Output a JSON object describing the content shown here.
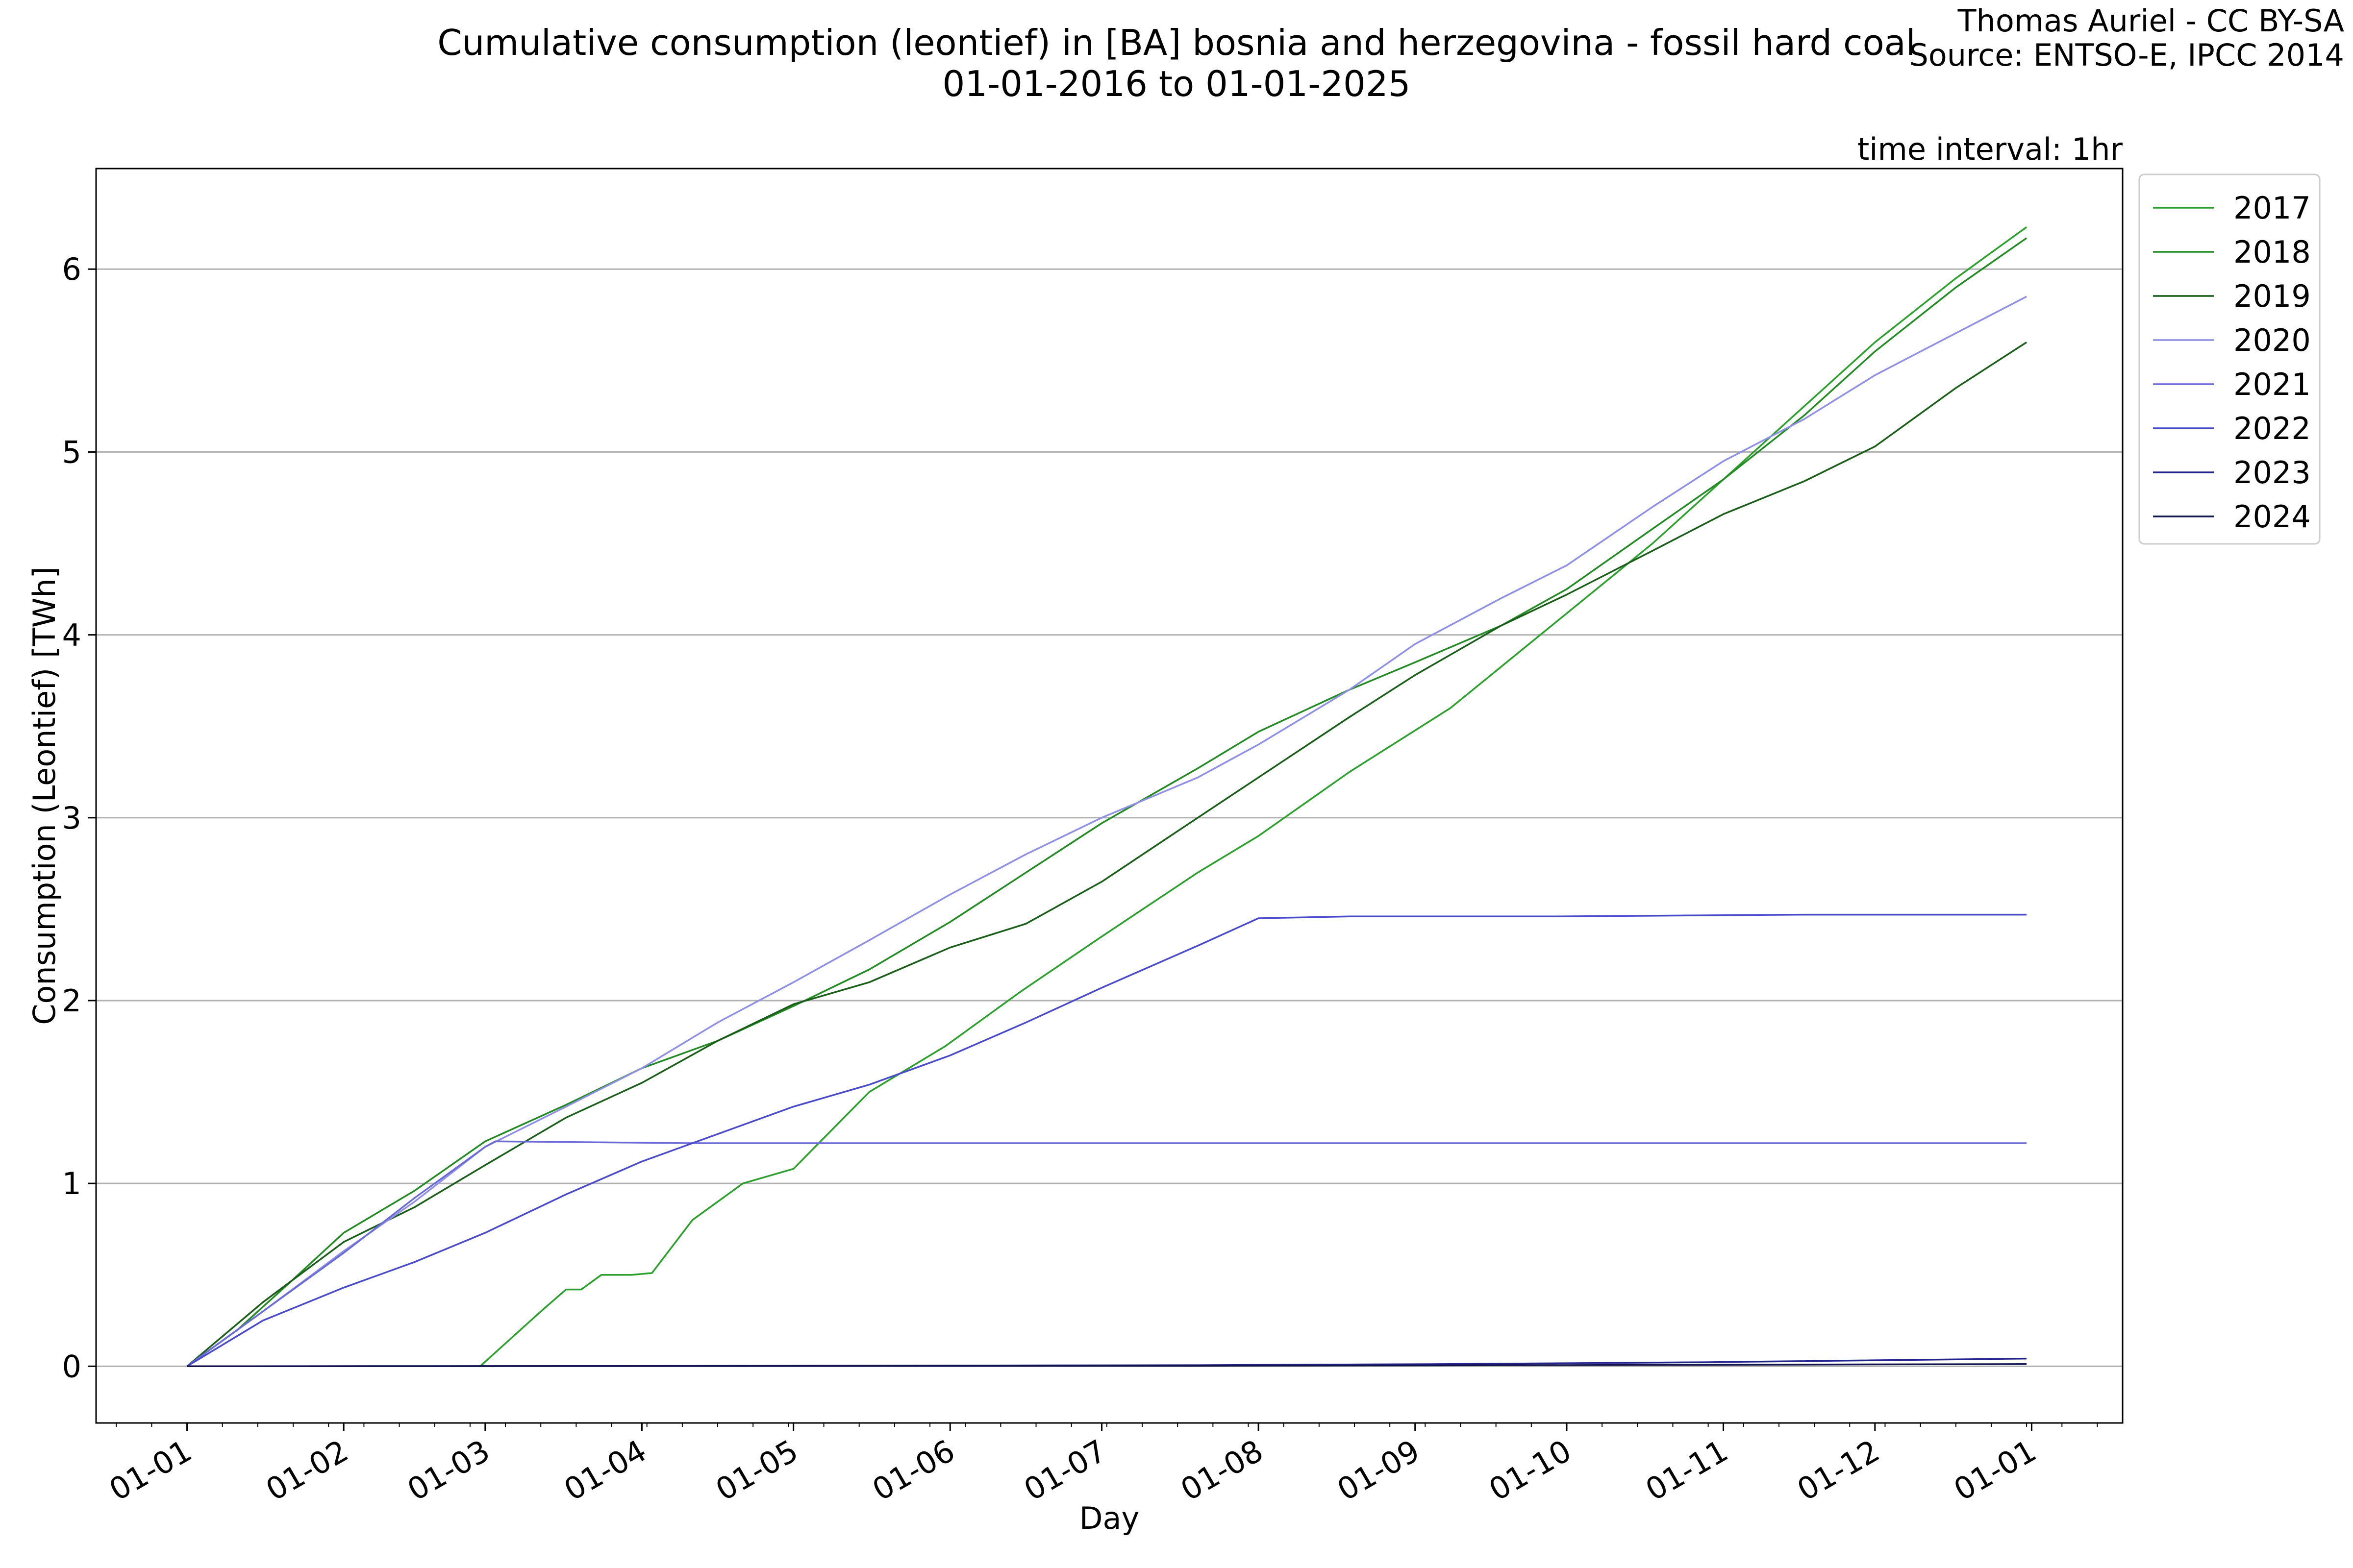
{
  "chart_data": {
    "type": "line",
    "title": "Cumulative consumption (leontief) in [BA] bosnia and herzegovina - fossil hard coal",
    "subtitle": "01-01-2016 to 01-01-2025",
    "credit_line1": "Thomas Auriel - CC BY-SA",
    "credit_line2": "Source: ENTSO-E, IPCC 2014",
    "annotation": "time interval: 1hr",
    "xlabel": "Day",
    "ylabel": "Consumption (Leontief) [TWh]",
    "x_tick_labels": [
      "01-01",
      "01-02",
      "01-03",
      "01-04",
      "01-05",
      "01-06",
      "01-07",
      "01-08",
      "01-09",
      "01-10",
      "01-11",
      "01-12",
      "01-01"
    ],
    "x_tick_days": [
      0,
      31,
      59,
      90,
      120,
      151,
      181,
      212,
      243,
      273,
      304,
      334,
      365
    ],
    "y_ticks": [
      0,
      1,
      2,
      3,
      4,
      5,
      6
    ],
    "y_tick_labels": [
      "0",
      "1",
      "2",
      "3",
      "4",
      "5",
      "6"
    ],
    "xlim": [
      -18,
      383
    ],
    "ylim": [
      -0.31,
      6.55
    ],
    "grid": "horizontal",
    "legend_position": "outside-top-right",
    "series": [
      {
        "name": "2017",
        "color": "#2ca02c",
        "x": [
          0,
          58,
          62,
          70,
          75,
          78,
          82,
          88,
          92,
          100,
          110,
          120,
          125,
          135,
          150,
          165,
          181,
          200,
          212,
          230,
          250,
          270,
          290,
          304,
          320,
          334,
          350,
          364
        ],
        "y": [
          0,
          0,
          0.1,
          0.3,
          0.42,
          0.42,
          0.5,
          0.5,
          0.51,
          0.8,
          1.0,
          1.08,
          1.22,
          1.5,
          1.75,
          2.05,
          2.35,
          2.7,
          2.9,
          3.25,
          3.6,
          4.05,
          4.5,
          4.85,
          5.25,
          5.6,
          5.95,
          6.23
        ]
      },
      {
        "name": "2018",
        "color": "#238b23",
        "x": [
          0,
          10,
          20,
          31,
          45,
          59,
          75,
          90,
          105,
          120,
          135,
          151,
          166,
          181,
          200,
          212,
          230,
          243,
          260,
          273,
          290,
          304,
          320,
          334,
          350,
          364
        ],
        "y": [
          0,
          0.2,
          0.45,
          0.73,
          0.96,
          1.23,
          1.43,
          1.63,
          1.78,
          1.97,
          2.17,
          2.43,
          2.7,
          2.97,
          3.27,
          3.47,
          3.7,
          3.85,
          4.05,
          4.25,
          4.58,
          4.85,
          5.2,
          5.55,
          5.9,
          6.17
        ]
      },
      {
        "name": "2019",
        "color": "#1a5e1a",
        "x": [
          0,
          15,
          31,
          45,
          59,
          75,
          90,
          105,
          120,
          135,
          151,
          166,
          181,
          200,
          212,
          230,
          243,
          260,
          273,
          290,
          304,
          320,
          334,
          350,
          364
        ],
        "y": [
          0,
          0.35,
          0.68,
          0.87,
          1.1,
          1.36,
          1.55,
          1.78,
          1.98,
          2.1,
          2.29,
          2.42,
          2.65,
          3.0,
          3.22,
          3.55,
          3.78,
          4.05,
          4.22,
          4.46,
          4.66,
          4.84,
          5.03,
          5.35,
          5.6
        ]
      },
      {
        "name": "2020",
        "color": "#8f8fe6",
        "x": [
          0,
          15,
          31,
          45,
          59,
          75,
          90,
          105,
          120,
          135,
          151,
          166,
          181,
          200,
          212,
          230,
          243,
          260,
          273,
          290,
          304,
          320,
          334,
          350,
          364
        ],
        "y": [
          0,
          0.3,
          0.63,
          0.9,
          1.2,
          1.42,
          1.63,
          1.88,
          2.1,
          2.33,
          2.58,
          2.8,
          3.0,
          3.22,
          3.4,
          3.7,
          3.95,
          4.2,
          4.38,
          4.7,
          4.95,
          5.18,
          5.42,
          5.65,
          5.85
        ]
      },
      {
        "name": "2021",
        "color": "#6b6bd8",
        "x": [
          0,
          15,
          31,
          45,
          59,
          61,
          100,
          150,
          200,
          250,
          300,
          364
        ],
        "y": [
          0,
          0.3,
          0.62,
          0.92,
          1.2,
          1.23,
          1.22,
          1.22,
          1.22,
          1.22,
          1.22,
          1.22
        ]
      },
      {
        "name": "2022",
        "color": "#4a4acc",
        "x": [
          0,
          15,
          31,
          45,
          59,
          75,
          90,
          105,
          120,
          135,
          151,
          166,
          181,
          200,
          208,
          212,
          230,
          270,
          320,
          364
        ],
        "y": [
          0,
          0.25,
          0.43,
          0.57,
          0.73,
          0.94,
          1.12,
          1.27,
          1.42,
          1.54,
          1.7,
          1.88,
          2.07,
          2.3,
          2.4,
          2.45,
          2.46,
          2.46,
          2.47,
          2.47
        ]
      },
      {
        "name": "2023",
        "color": "#24248f",
        "x": [
          0,
          100,
          200,
          250,
          300,
          364
        ],
        "y": [
          0,
          0.002,
          0.006,
          0.012,
          0.022,
          0.042
        ]
      },
      {
        "name": "2024",
        "color": "#141450",
        "x": [
          0,
          100,
          200,
          250,
          300,
          364
        ],
        "y": [
          0,
          0.001,
          0.003,
          0.005,
          0.008,
          0.012
        ]
      }
    ]
  }
}
